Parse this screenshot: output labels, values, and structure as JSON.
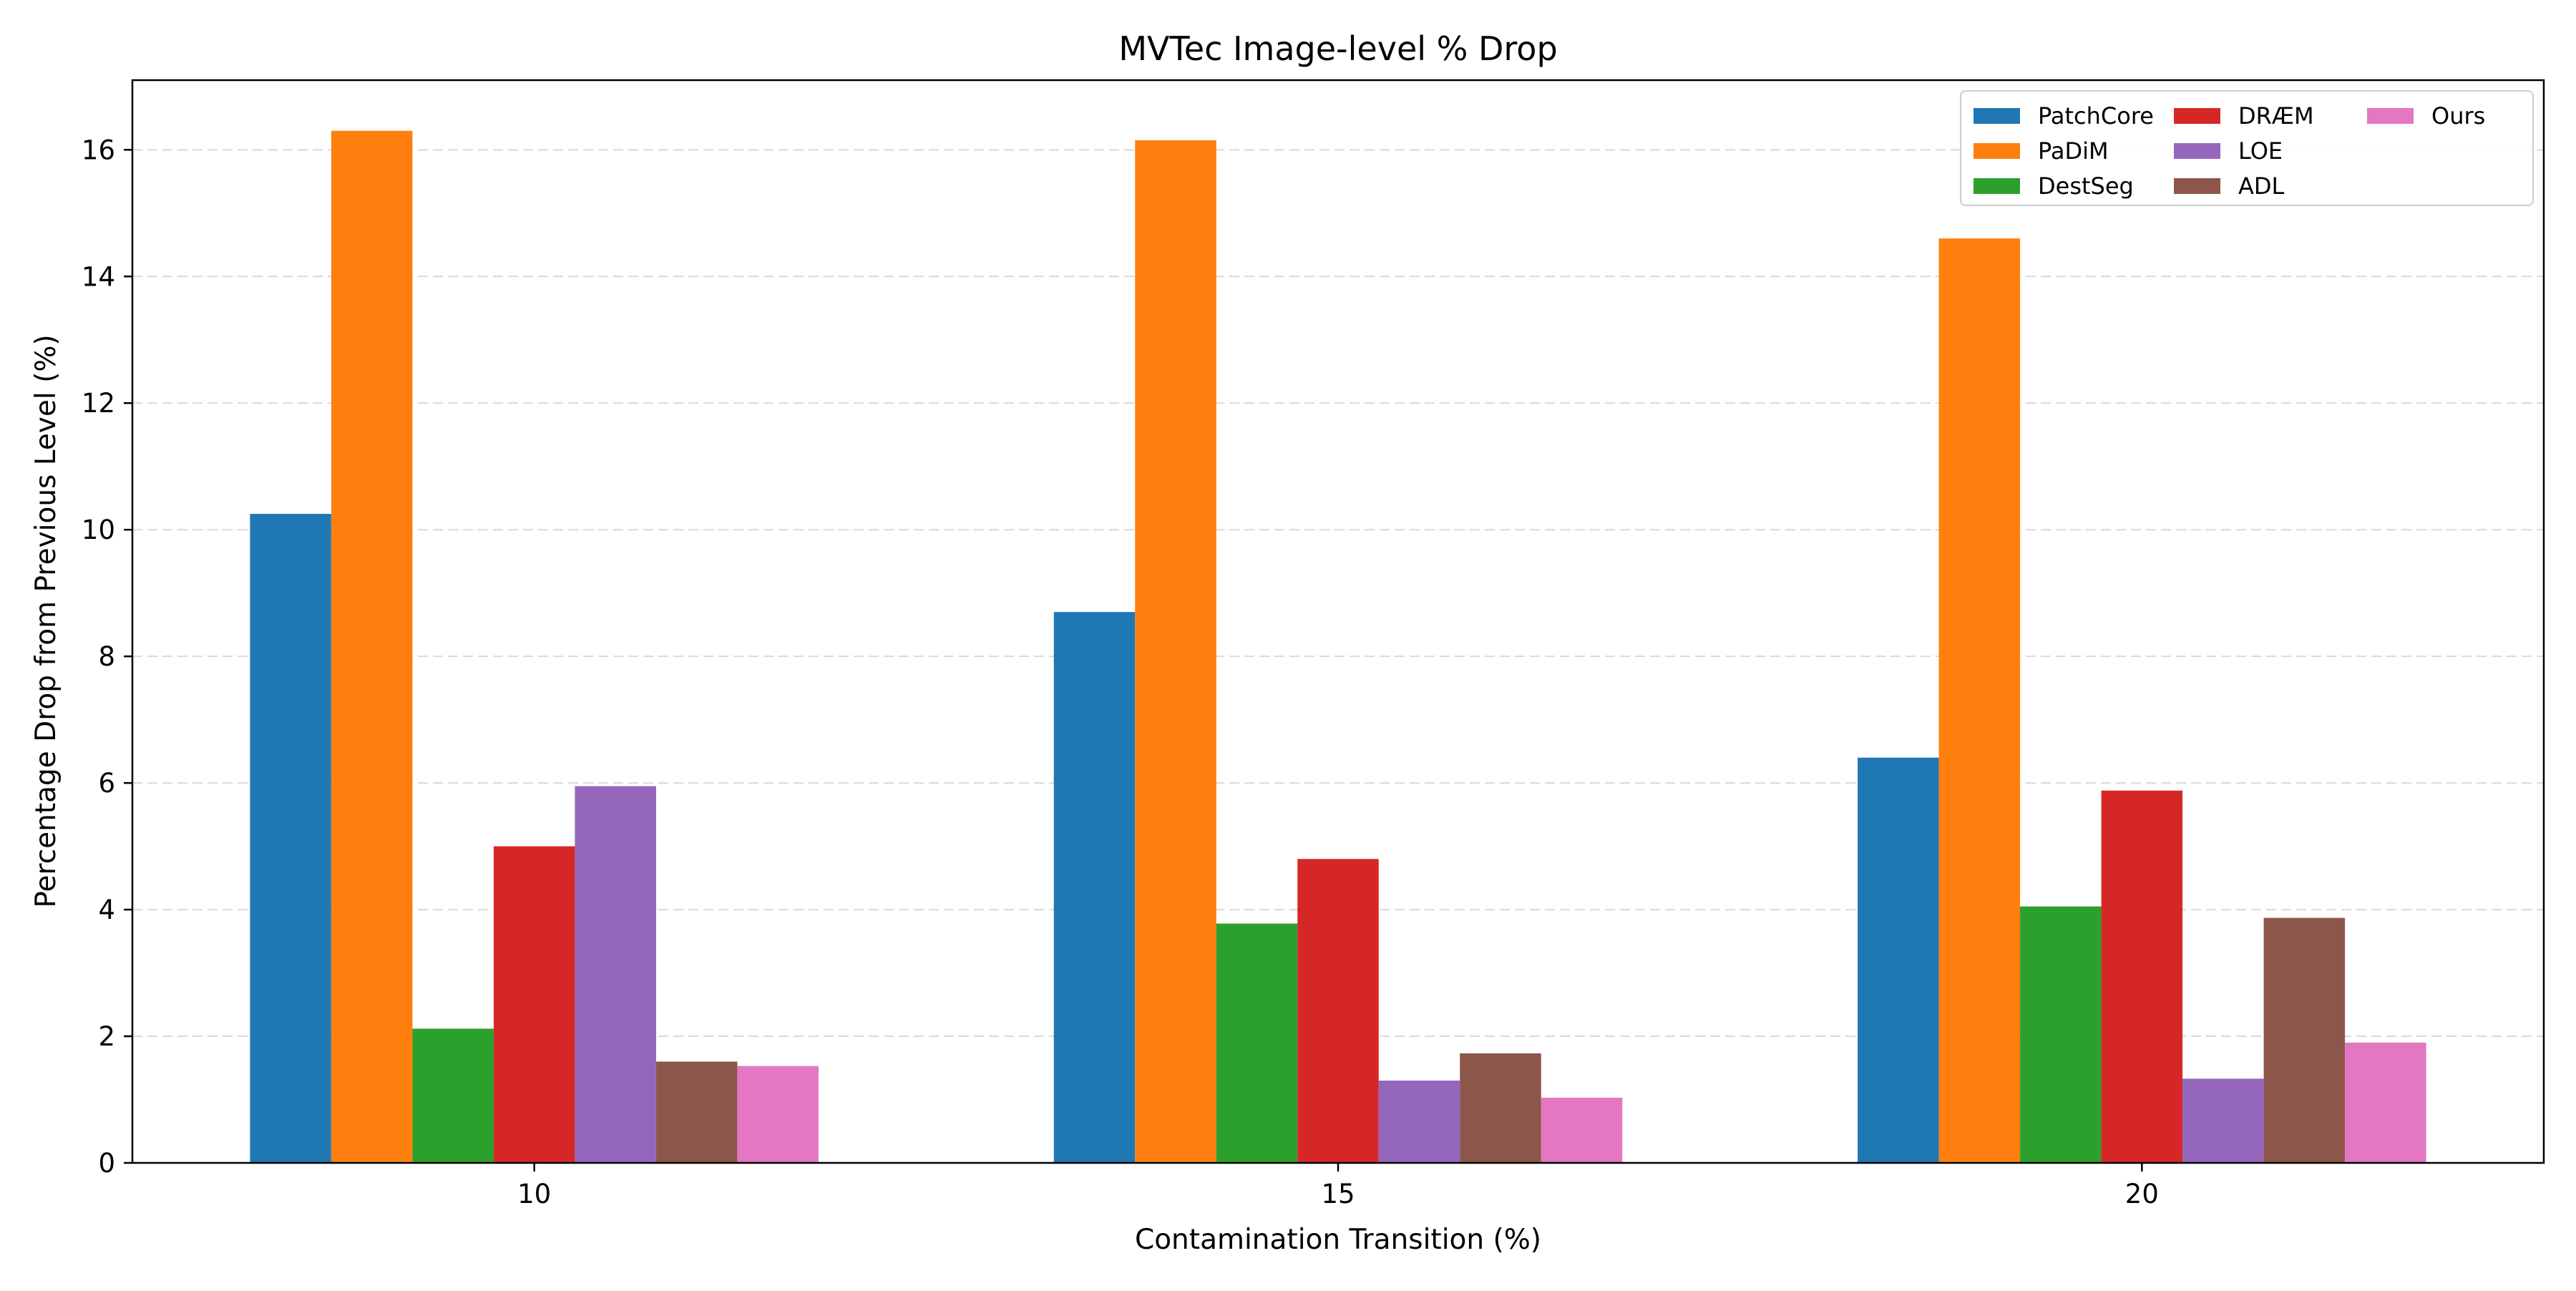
{
  "chart_data": {
    "type": "bar",
    "title": "MVTec Image-level % Drop",
    "xlabel": "Contamination Transition (%)",
    "ylabel": "Percentage Drop from Previous Level (%)",
    "categories": [
      "10",
      "15",
      "20"
    ],
    "ylim": [
      0,
      17.1
    ],
    "yticks": [
      "0",
      "2",
      "4",
      "6",
      "8",
      "10",
      "12",
      "14",
      "16"
    ],
    "grid": "y-dashed",
    "legend_position": "top-right",
    "series": [
      {
        "name": "PatchCore",
        "color": "#1f77b4",
        "values": [
          10.25,
          8.7,
          6.4
        ]
      },
      {
        "name": "PaDiM",
        "color": "#ff7f0e",
        "values": [
          16.3,
          16.15,
          14.6
        ]
      },
      {
        "name": "DestSeg",
        "color": "#2ca02c",
        "values": [
          2.12,
          3.78,
          4.05
        ]
      },
      {
        "name": "DRÆM",
        "color": "#d62728",
        "values": [
          5.0,
          4.8,
          5.88
        ]
      },
      {
        "name": "LOE",
        "color": "#9467bd",
        "values": [
          5.95,
          1.3,
          1.33
        ]
      },
      {
        "name": "ADL",
        "color": "#8c564b",
        "values": [
          1.6,
          1.73,
          3.87
        ]
      },
      {
        "name": "Ours",
        "color": "#e377c2",
        "values": [
          1.53,
          1.03,
          1.9
        ]
      }
    ]
  }
}
